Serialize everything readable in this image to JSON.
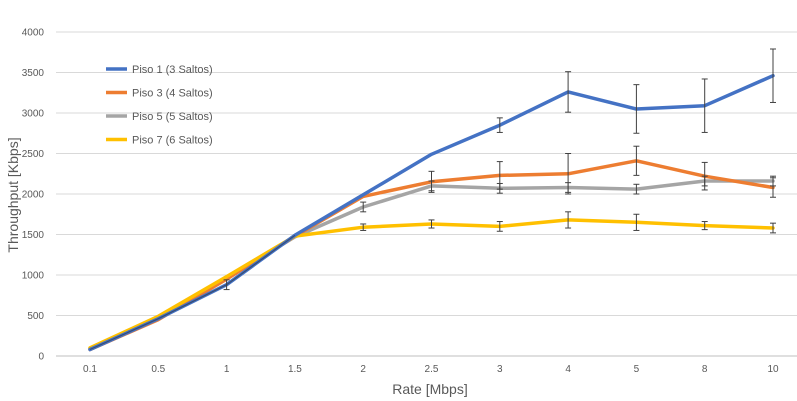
{
  "chart_data": {
    "type": "line",
    "title": "",
    "xlabel": "Rate [Mbps]",
    "ylabel": "Throughput  [Kbps]",
    "categories": [
      "0.1",
      "0.5",
      "1",
      "1.5",
      "2",
      "2.5",
      "3",
      "4",
      "5",
      "8",
      "10"
    ],
    "ylim": [
      0,
      4000
    ],
    "yticks": [
      0,
      500,
      1000,
      1500,
      2000,
      2500,
      3000,
      3500,
      4000
    ],
    "grid": true,
    "legend_position": "top-left",
    "series": [
      {
        "name": "Piso 1 (3 Saltos)",
        "color": "#4472C4",
        "values": [
          80,
          460,
          880,
          1490,
          1990,
          2490,
          2850,
          3260,
          3050,
          3090,
          3460
        ],
        "error": [
          0,
          0,
          60,
          0,
          0,
          0,
          90,
          250,
          300,
          330,
          330
        ]
      },
      {
        "name": "Piso 3  (4 Saltos)",
        "color": "#ED7D31",
        "values": [
          80,
          450,
          950,
          1480,
          1970,
          2150,
          2230,
          2250,
          2410,
          2220,
          2080
        ],
        "error": [
          0,
          0,
          0,
          0,
          0,
          130,
          170,
          250,
          180,
          170,
          120
        ]
      },
      {
        "name": "Piso 5  (5 Saltos)",
        "color": "#A5A5A5",
        "values": [
          90,
          480,
          960,
          1470,
          1840,
          2100,
          2070,
          2080,
          2060,
          2160,
          2160
        ],
        "error": [
          0,
          0,
          0,
          0,
          60,
          60,
          60,
          60,
          60,
          60,
          60
        ]
      },
      {
        "name": "Piso 7  (6 Saltos)",
        "color": "#FFC000",
        "values": [
          100,
          490,
          980,
          1480,
          1590,
          1630,
          1600,
          1680,
          1650,
          1610,
          1580
        ],
        "error": [
          0,
          0,
          0,
          0,
          40,
          50,
          60,
          100,
          100,
          50,
          60
        ]
      }
    ]
  }
}
